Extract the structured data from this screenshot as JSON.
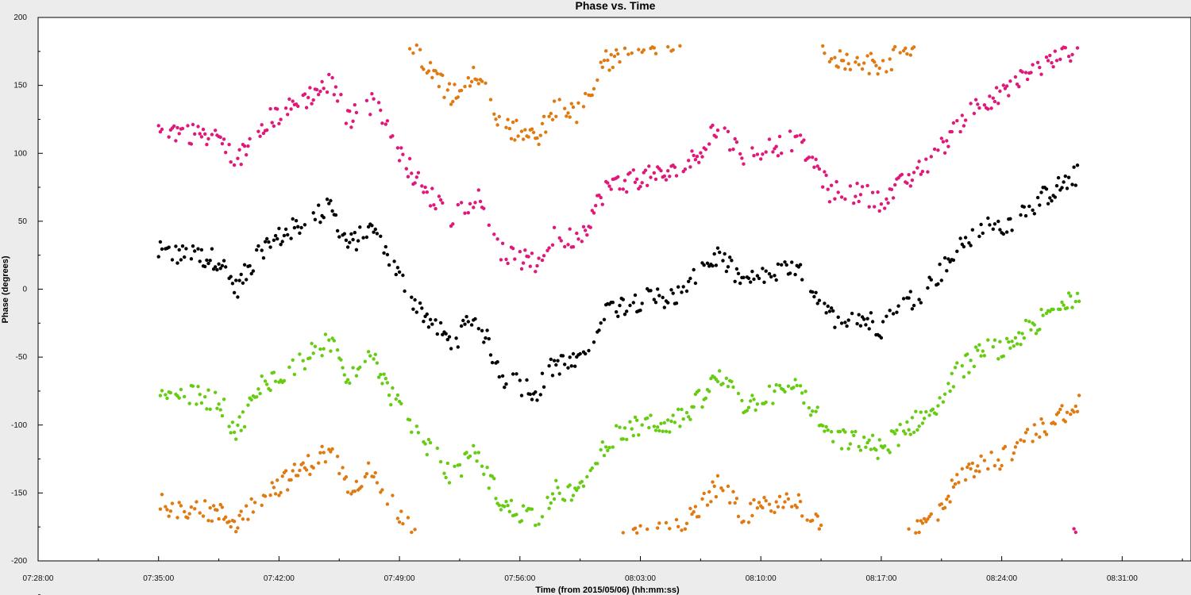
{
  "chart_data": {
    "type": "scatter",
    "title": "Phase vs. Time",
    "xlabel": "Time (from 2015/05/06) (hh:mm:ss)",
    "ylabel": "Phase (degrees)",
    "xlim": [
      "07:28:00",
      "08:35:00"
    ],
    "ylim": [
      -200,
      200
    ],
    "grid": false,
    "x_ticks": [
      "07:28:00",
      "07:35:00",
      "07:42:00",
      "07:49:00",
      "07:56:00",
      "08:03:00",
      "08:10:00",
      "08:17:00",
      "08:24:00",
      "08:31:00"
    ],
    "y_ticks": [
      200,
      150,
      100,
      50,
      0,
      -50,
      -100,
      -150,
      -200
    ],
    "time_range": [
      "07:35:00",
      "08:28:30"
    ],
    "series": [
      {
        "color": "#000000",
        "trend": [
          [
            "07:35:00",
            27
          ],
          [
            "07:38:30",
            22
          ],
          [
            "07:39:30",
            0
          ],
          [
            "07:41:00",
            30
          ],
          [
            "07:42:30",
            42
          ],
          [
            "07:45:00",
            60
          ],
          [
            "07:46:00",
            32
          ],
          [
            "07:47:30",
            45
          ],
          [
            "07:48:30",
            20
          ],
          [
            "07:50:00",
            -12
          ],
          [
            "07:52:00",
            -40
          ],
          [
            "07:53:30",
            -20
          ],
          [
            "07:55:00",
            -65
          ],
          [
            "07:57:00",
            -75
          ],
          [
            "07:58:00",
            -55
          ],
          [
            "07:59:30",
            -55
          ],
          [
            "08:01:00",
            -15
          ],
          [
            "08:03:00",
            -8
          ],
          [
            "08:05:00",
            -5
          ],
          [
            "08:06:00",
            5
          ],
          [
            "08:07:30",
            25
          ],
          [
            "08:09:00",
            5
          ],
          [
            "08:12:00",
            15
          ],
          [
            "08:13:00",
            0
          ],
          [
            "08:14:00",
            -20
          ],
          [
            "08:16:00",
            -22
          ],
          [
            "08:17:00",
            -28
          ],
          [
            "08:18:30",
            -10
          ],
          [
            "08:20:00",
            5
          ],
          [
            "08:21:30",
            30
          ],
          [
            "08:23:00",
            45
          ],
          [
            "08:24:00",
            45
          ],
          [
            "08:25:30",
            60
          ],
          [
            "08:28:30",
            85
          ]
        ]
      },
      {
        "color": "#e0187a",
        "trend": [
          [
            "07:35:00",
            118
          ],
          [
            "07:38:30",
            112
          ],
          [
            "07:39:30",
            92
          ],
          [
            "07:41:00",
            122
          ],
          [
            "07:42:30",
            132
          ],
          [
            "07:45:00",
            152
          ],
          [
            "07:46:00",
            125
          ],
          [
            "07:47:30",
            138
          ],
          [
            "07:48:30",
            112
          ],
          [
            "07:50:00",
            80
          ],
          [
            "07:52:00",
            52
          ],
          [
            "07:53:30",
            70
          ],
          [
            "07:55:00",
            26
          ],
          [
            "07:57:00",
            18
          ],
          [
            "07:58:00",
            38
          ],
          [
            "07:59:30",
            38
          ],
          [
            "08:01:00",
            75
          ],
          [
            "08:03:00",
            82
          ],
          [
            "08:05:00",
            85
          ],
          [
            "08:06:00",
            95
          ],
          [
            "08:07:30",
            118
          ],
          [
            "08:09:00",
            98
          ],
          [
            "08:12:00",
            110
          ],
          [
            "08:13:00",
            95
          ],
          [
            "08:14:00",
            72
          ],
          [
            "08:16:00",
            70
          ],
          [
            "08:17:00",
            65
          ],
          [
            "08:18:30",
            80
          ],
          [
            "08:20:00",
            95
          ],
          [
            "08:21:30",
            122
          ],
          [
            "08:23:00",
            140
          ],
          [
            "08:24:00",
            142
          ],
          [
            "08:25:30",
            158
          ],
          [
            "08:28:30",
            178
          ]
        ]
      },
      {
        "color": "#66cc11",
        "trend": [
          [
            "07:35:00",
            -75
          ],
          [
            "07:38:30",
            -82
          ],
          [
            "07:39:30",
            -105
          ],
          [
            "07:41:00",
            -70
          ],
          [
            "07:42:30",
            -60
          ],
          [
            "07:45:00",
            -38
          ],
          [
            "07:46:00",
            -65
          ],
          [
            "07:47:30",
            -50
          ],
          [
            "07:48:30",
            -78
          ],
          [
            "07:50:00",
            -105
          ],
          [
            "07:52:00",
            -138
          ],
          [
            "07:53:30",
            -120
          ],
          [
            "07:55:00",
            -160
          ],
          [
            "07:57:00",
            -168
          ],
          [
            "07:58:00",
            -148
          ],
          [
            "07:59:30",
            -150
          ],
          [
            "08:01:00",
            -112
          ],
          [
            "08:03:00",
            -100
          ],
          [
            "08:05:00",
            -98
          ],
          [
            "08:06:00",
            -88
          ],
          [
            "08:07:30",
            -65
          ],
          [
            "08:09:00",
            -85
          ],
          [
            "08:12:00",
            -72
          ],
          [
            "08:13:00",
            -88
          ],
          [
            "08:14:00",
            -110
          ],
          [
            "08:16:00",
            -112
          ],
          [
            "08:17:00",
            -118
          ],
          [
            "08:18:30",
            -102
          ],
          [
            "08:20:00",
            -88
          ],
          [
            "08:21:30",
            -60
          ],
          [
            "08:23:00",
            -45
          ],
          [
            "08:24:00",
            -45
          ],
          [
            "08:25:30",
            -30
          ],
          [
            "08:28:30",
            -2
          ]
        ]
      },
      {
        "color": "#e07a10",
        "trend": [
          [
            "07:35:00",
            -158
          ],
          [
            "07:38:30",
            -165
          ],
          [
            "07:39:30",
            -172
          ],
          [
            "07:41:00",
            -152
          ],
          [
            "07:42:30",
            -140
          ],
          [
            "07:45:00",
            -118
          ],
          [
            "07:46:00",
            -145
          ],
          [
            "07:47:30",
            -132
          ],
          [
            "07:48:30",
            -158
          ],
          [
            "07:50:00",
            -185
          ],
          [
            "07:52:00",
            -218
          ],
          [
            "07:53:30",
            -200
          ],
          [
            "07:55:00",
            -240
          ],
          [
            "07:57:00",
            -248
          ],
          [
            "07:58:00",
            -228
          ],
          [
            "07:59:30",
            -230
          ],
          [
            "08:01:00",
            -192
          ],
          [
            "08:03:00",
            -180
          ],
          [
            "08:05:00",
            -178
          ],
          [
            "08:06:00",
            -168
          ],
          [
            "08:07:30",
            -145
          ],
          [
            "08:09:00",
            -165
          ],
          [
            "08:12:00",
            -155
          ],
          [
            "08:13:00",
            -168
          ],
          [
            "08:14:00",
            -190
          ],
          [
            "08:16:00",
            -192
          ],
          [
            "08:17:00",
            -198
          ],
          [
            "08:18:30",
            -182
          ],
          [
            "08:20:00",
            -168
          ],
          [
            "08:21:30",
            -140
          ],
          [
            "08:23:00",
            -125
          ],
          [
            "08:24:00",
            -125
          ],
          [
            "08:25:30",
            -110
          ],
          [
            "08:28:30",
            -82
          ]
        ]
      }
    ]
  }
}
